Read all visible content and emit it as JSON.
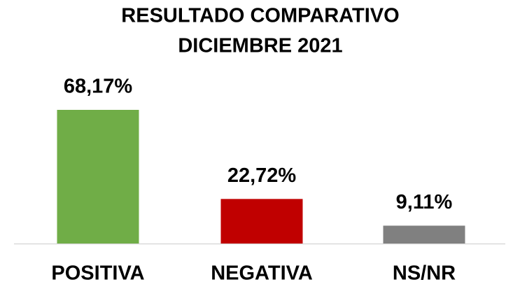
{
  "chart_data": {
    "type": "bar",
    "title": [
      "RESULTADO COMPARATIVO",
      "DICIEMBRE 2021"
    ],
    "categories": [
      "POSITIVA",
      "NEGATIVA",
      "NS/NR"
    ],
    "values": [
      68.17,
      22.72,
      9.11
    ],
    "value_labels": [
      "68,17%",
      "22,72%",
      "9,11%"
    ],
    "colors": [
      "#70ad47",
      "#c00000",
      "#808080"
    ]
  }
}
